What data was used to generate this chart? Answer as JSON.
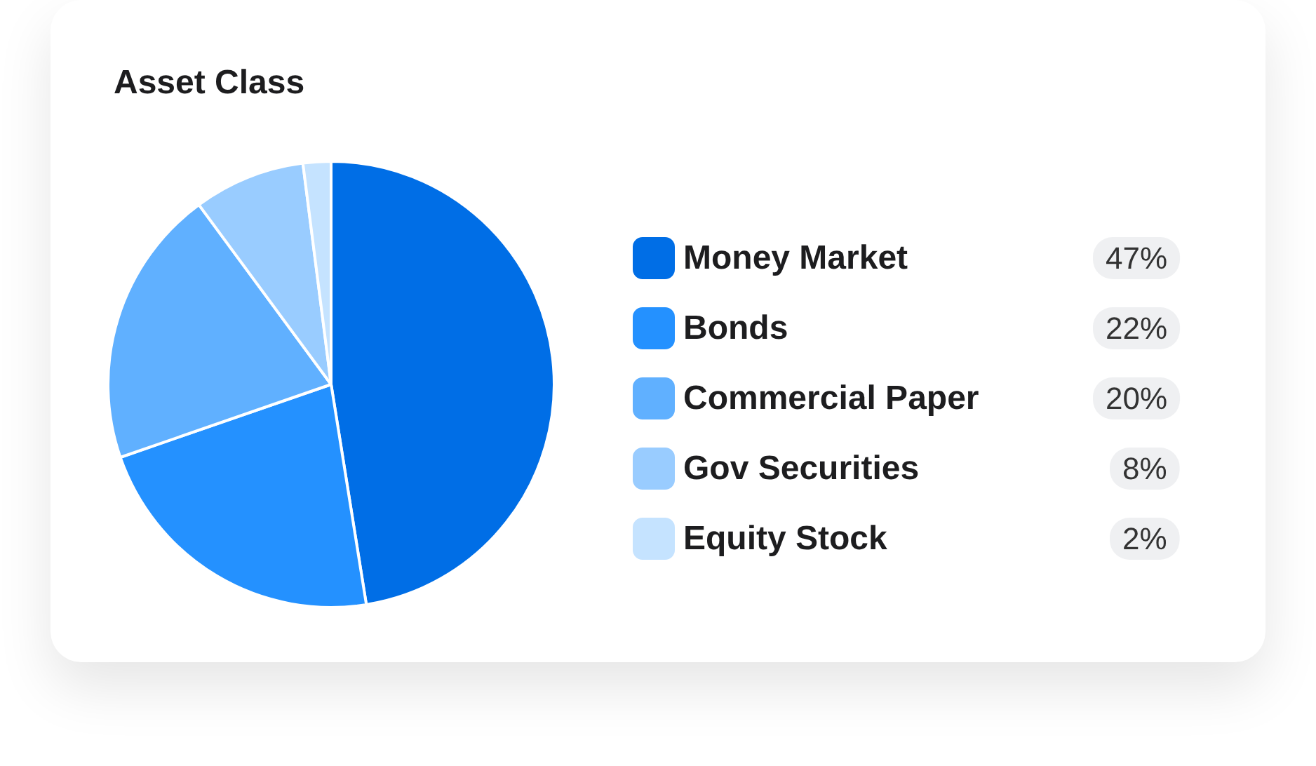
{
  "chart_data": {
    "type": "pie",
    "title": "Asset Class",
    "categories": [
      "Money Market",
      "Bonds",
      "Commercial Paper",
      "Gov Securities",
      "Equity Stock"
    ],
    "values": [
      47,
      22,
      20,
      8,
      2
    ],
    "colors": [
      "#006ee6",
      "#2491ff",
      "#60b0ff",
      "#99ccff",
      "#c5e3ff"
    ],
    "value_labels": [
      "47%",
      "22%",
      "20%",
      "8%",
      "2%"
    ],
    "legend": "right"
  }
}
